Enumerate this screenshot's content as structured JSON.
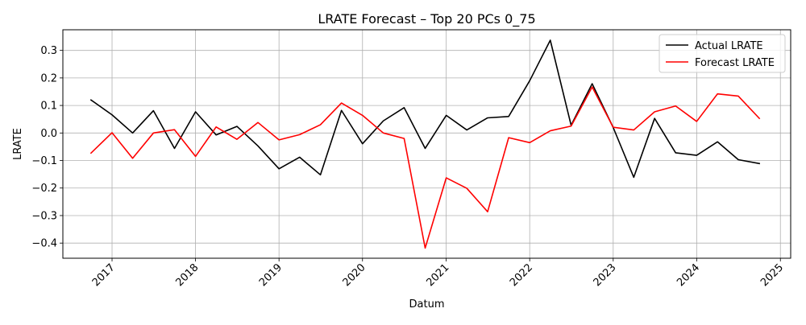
{
  "chart_data": {
    "type": "line",
    "title": "LRATE Forecast – Top 20 PCs 0_75",
    "xlabel": "Datum",
    "ylabel": "LRATE",
    "x_type": "date",
    "xlim": [
      "2016-05-31",
      "2025-02-15"
    ],
    "ylim": [
      -0.455,
      0.375
    ],
    "x_ticks": [
      "2017-01-01",
      "2018-01-01",
      "2019-01-01",
      "2020-01-01",
      "2021-01-01",
      "2022-01-01",
      "2023-01-01",
      "2024-01-01",
      "2025-01-01"
    ],
    "x_tick_labels": [
      "2017",
      "2018",
      "2019",
      "2020",
      "2021",
      "2022",
      "2023",
      "2024",
      "2025"
    ],
    "y_ticks": [
      -0.4,
      -0.3,
      -0.2,
      -0.1,
      0.0,
      0.1,
      0.2,
      0.3
    ],
    "y_tick_labels": [
      "−0.4",
      "−0.3",
      "−0.2",
      "−0.1",
      "0.0",
      "0.1",
      "0.2",
      "0.3"
    ],
    "grid": true,
    "legend_position": "top-right",
    "x": [
      "2016-10-01",
      "2017-01-01",
      "2017-04-01",
      "2017-07-01",
      "2017-10-01",
      "2018-01-01",
      "2018-04-01",
      "2018-07-01",
      "2018-10-01",
      "2019-01-01",
      "2019-04-01",
      "2019-07-01",
      "2019-10-01",
      "2020-01-01",
      "2020-04-01",
      "2020-07-01",
      "2020-10-01",
      "2021-01-01",
      "2021-04-01",
      "2021-07-01",
      "2021-10-01",
      "2022-01-01",
      "2022-04-01",
      "2022-07-01",
      "2022-10-01",
      "2023-01-01",
      "2023-04-01",
      "2023-07-01",
      "2023-10-01",
      "2024-01-01",
      "2024-04-01",
      "2024-07-01",
      "2024-10-01"
    ],
    "series": [
      {
        "name": "Actual LRATE",
        "color": "#000000",
        "values": [
          0.12,
          0.066,
          0.0,
          0.081,
          -0.056,
          0.077,
          -0.007,
          0.024,
          -0.047,
          -0.13,
          -0.088,
          -0.152,
          0.082,
          -0.039,
          0.044,
          0.092,
          -0.056,
          0.064,
          0.011,
          0.055,
          0.06,
          0.19,
          0.337,
          0.028,
          0.179,
          0.02,
          -0.161,
          0.053,
          -0.072,
          -0.081,
          -0.032,
          -0.097,
          -0.111
        ]
      },
      {
        "name": "Forecast LRATE",
        "color": "#ff0000",
        "values": [
          -0.073,
          0.001,
          -0.092,
          0.0,
          0.012,
          -0.085,
          0.022,
          -0.023,
          0.038,
          -0.025,
          -0.006,
          0.03,
          0.109,
          0.064,
          0.0,
          -0.02,
          -0.418,
          -0.163,
          -0.201,
          -0.286,
          -0.017,
          -0.035,
          0.008,
          0.025,
          0.167,
          0.021,
          0.011,
          0.077,
          0.098,
          0.042,
          0.142,
          0.134,
          0.053
        ]
      }
    ]
  }
}
